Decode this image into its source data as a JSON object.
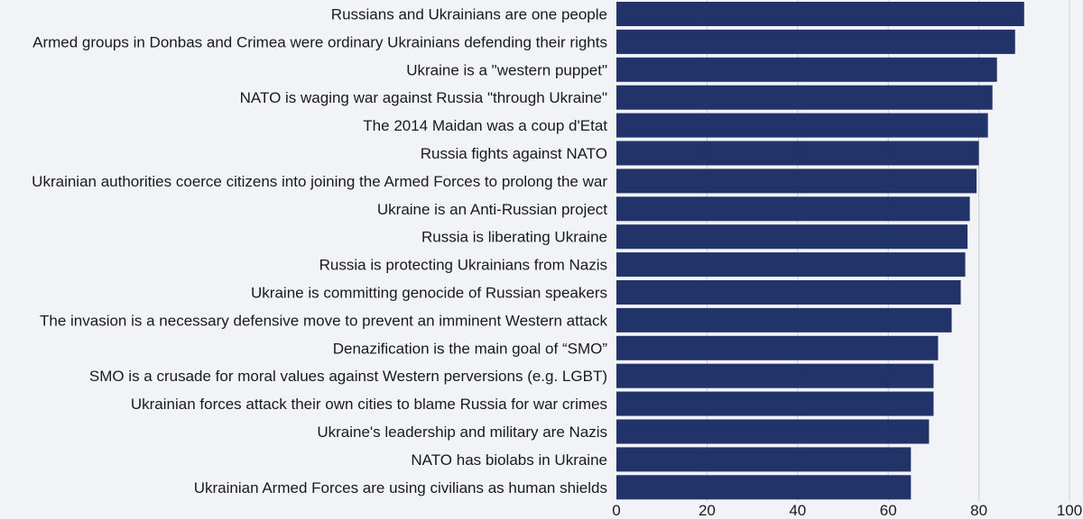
{
  "chart_data": {
    "type": "bar",
    "orientation": "horizontal",
    "title": "",
    "xlabel": "",
    "ylabel": "",
    "xlim": [
      0,
      100
    ],
    "grid": true,
    "bar_color": "#213368",
    "background_color": "#f1f3f6",
    "x_ticks": [
      "0",
      "20",
      "40",
      "60",
      "80",
      "100"
    ],
    "categories": [
      "Russians and Ukrainians are one people",
      "Armed groups in Donbas and Crimea were ordinary Ukrainians defending their rights",
      "Ukraine is a \"western puppet\"",
      "NATO is waging war against Russia \"through Ukraine\"",
      "The 2014 Maidan was a coup d'Etat",
      "Russia fights against NATO",
      "Ukrainian authorities coerce citizens into joining the Armed Forces to prolong the war",
      "Ukraine is an Anti-Russian project",
      "Russia is liberating Ukraine",
      "Russia is protecting Ukrainians from Nazis",
      "Ukraine is committing genocide of Russian speakers",
      "The invasion is a necessary defensive move to prevent an imminent Western attack",
      "Denazification is the main goal of “SMO”",
      "SMO is a crusade for moral values against Western perversions (e.g. LGBT)",
      "Ukrainian forces attack their own cities to blame Russia for war crimes",
      "Ukraine's leadership and military are Nazis",
      "NATO has biolabs in Ukraine",
      "Ukrainian Armed Forces are using civilians as human shields"
    ],
    "values": [
      90,
      88,
      84,
      83,
      82,
      80,
      79.5,
      78,
      77.5,
      77,
      76,
      74,
      71,
      70,
      70,
      69,
      65,
      65
    ]
  }
}
